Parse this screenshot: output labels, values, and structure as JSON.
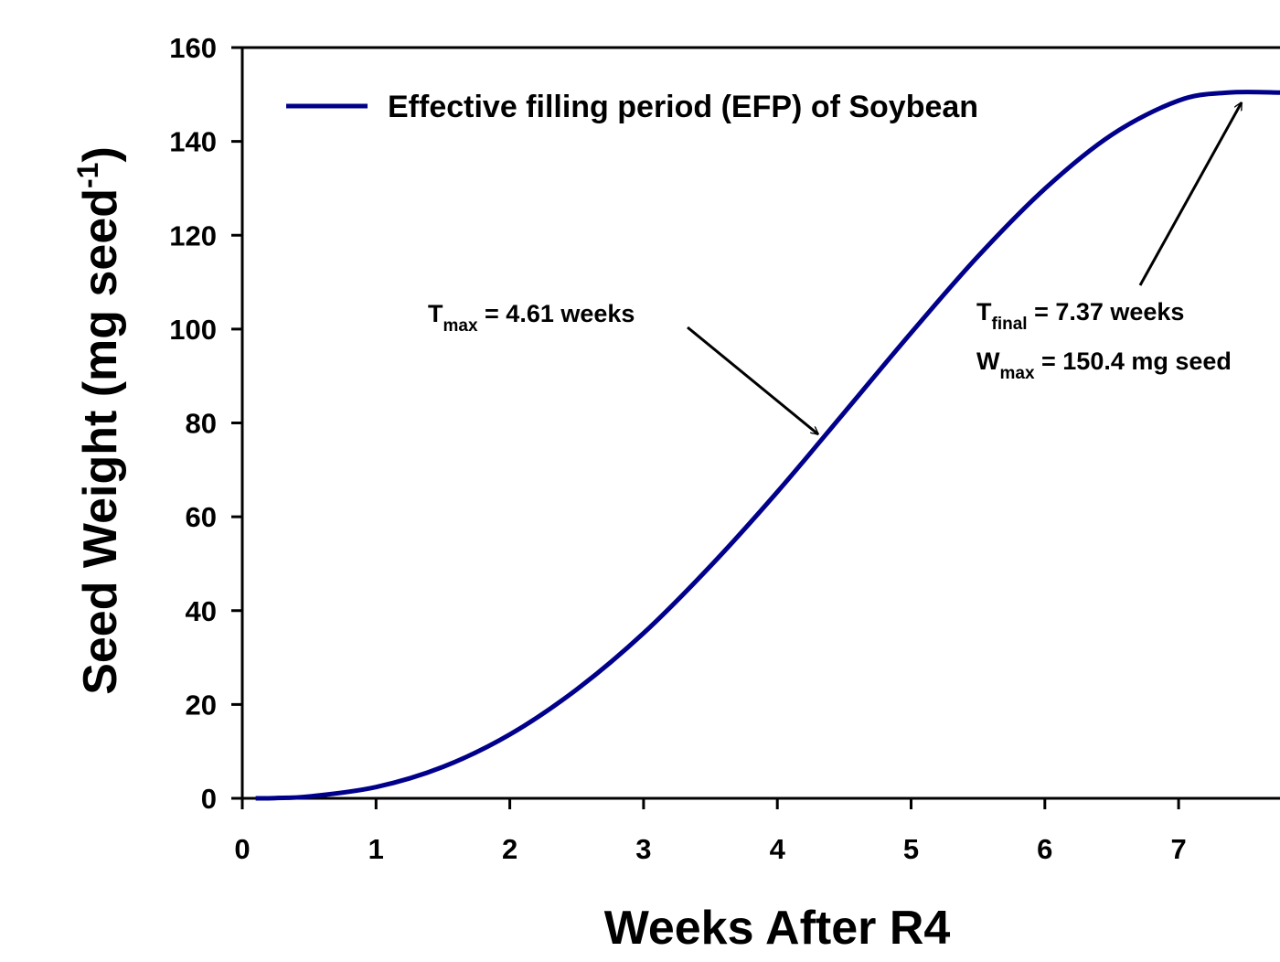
{
  "chart_data": {
    "type": "line",
    "x_label": "Weeks After R4",
    "y_label": {
      "main": "Seed Weight (mg seed",
      "sup": "-1",
      "end": ")"
    },
    "x": [
      0.1,
      0.25,
      0.5,
      1,
      1.5,
      2,
      2.5,
      3,
      3.5,
      4,
      4.5,
      5,
      5.5,
      6,
      6.5,
      7,
      7.37,
      7.76
    ],
    "series": [
      {
        "name": "Effective filling period (EFP) of Soybean",
        "color": "#00008b",
        "values": [
          0,
          0.06,
          0.4,
          2.4,
          6.7,
          13.6,
          23.2,
          35.2,
          49.5,
          65.3,
          82.2,
          99.2,
          115.5,
          129.9,
          141.4,
          148.7,
          150.4,
          150.4
        ]
      }
    ],
    "xlim": [
      0,
      8
    ],
    "xticks": [
      0,
      1,
      2,
      3,
      4,
      5,
      6,
      7
    ],
    "ylim": [
      0,
      160
    ],
    "yticks": [
      0,
      20,
      40,
      60,
      80,
      100,
      120,
      140,
      160
    ],
    "legend": "top-left",
    "annotations": [
      {
        "main": "T",
        "sub": "max",
        "rest": " = 4.61 weeks"
      },
      {
        "main": "T",
        "sub": "final",
        "rest": " = 7.37 weeks"
      },
      {
        "main": "W",
        "sub": "max",
        "rest": " = 150.4 mg seed"
      }
    ]
  }
}
